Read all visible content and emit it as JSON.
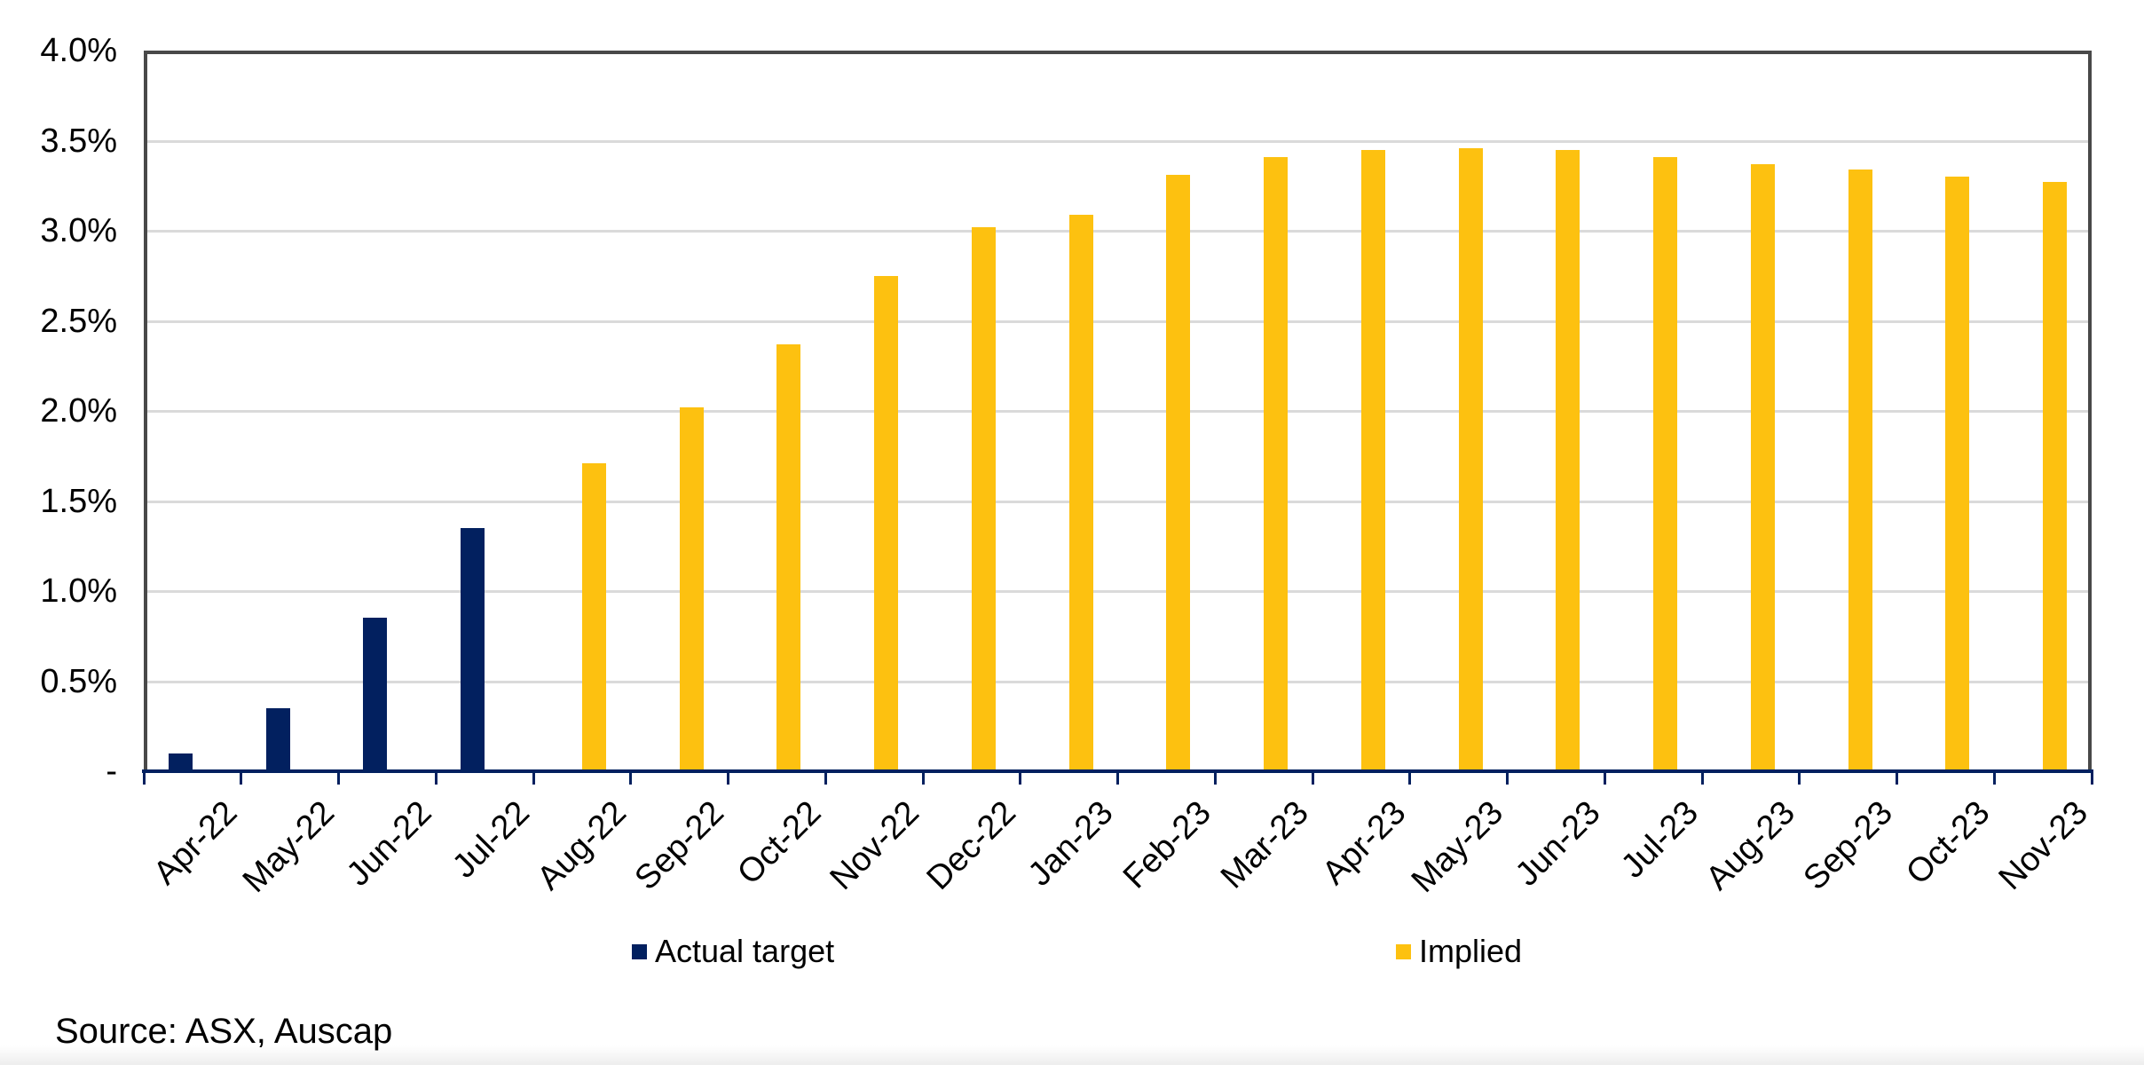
{
  "chart_data": {
    "type": "bar",
    "title": "",
    "categories": [
      "Apr-22",
      "May-22",
      "Jun-22",
      "Jul-22",
      "Aug-22",
      "Sep-22",
      "Oct-22",
      "Nov-22",
      "Dec-22",
      "Jan-23",
      "Feb-23",
      "Mar-23",
      "Apr-23",
      "May-23",
      "Jun-23",
      "Jul-23",
      "Aug-23",
      "Sep-23",
      "Oct-23",
      "Nov-23"
    ],
    "series": [
      {
        "name": "Actual target",
        "color": "#02205F",
        "values": [
          0.1,
          0.35,
          0.85,
          1.35,
          null,
          null,
          null,
          null,
          null,
          null,
          null,
          null,
          null,
          null,
          null,
          null,
          null,
          null,
          null,
          null
        ]
      },
      {
        "name": "Implied",
        "color": "#FDC110",
        "values": [
          null,
          null,
          null,
          null,
          1.71,
          2.02,
          2.37,
          2.75,
          3.02,
          3.09,
          3.31,
          3.41,
          3.45,
          3.46,
          3.45,
          3.41,
          3.37,
          3.34,
          3.3,
          3.27
        ]
      }
    ],
    "y_ticks": [
      {
        "label": "4.0%",
        "value": 4.0
      },
      {
        "label": "3.5%",
        "value": 3.5
      },
      {
        "label": "3.0%",
        "value": 3.0
      },
      {
        "label": "2.5%",
        "value": 2.5
      },
      {
        "label": "2.0%",
        "value": 2.0
      },
      {
        "label": "1.5%",
        "value": 1.5
      },
      {
        "label": "1.0%",
        "value": 1.0
      },
      {
        "label": "0.5%",
        "value": 0.5
      },
      {
        "label": "-",
        "value": 0.0
      }
    ],
    "ylim": [
      0,
      4.0
    ],
    "grid": true,
    "legend_position": "bottom"
  },
  "colors": {
    "actual": "#02205F",
    "implied": "#FDC110",
    "gridline": "#DADADA",
    "plot_border": "#494949",
    "axis_line": "#02205F",
    "text": "#000000"
  },
  "legend": {
    "actual_label": "Actual target",
    "implied_label": "Implied"
  },
  "source_note": "Source: ASX, Auscap"
}
